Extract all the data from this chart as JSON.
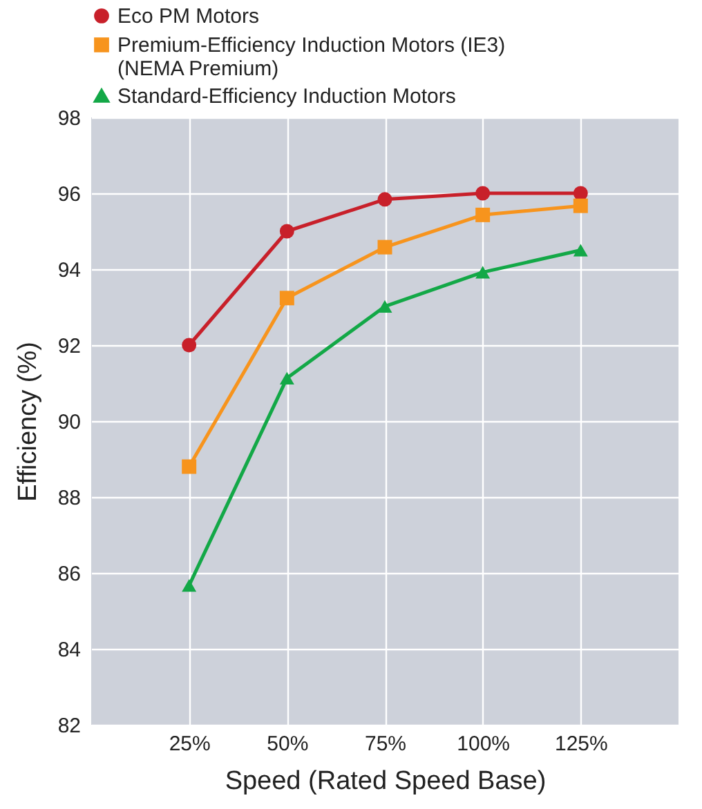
{
  "chart_data": {
    "type": "line",
    "xlabel": "Speed (Rated Speed Base)",
    "ylabel": "Efficiency (%)",
    "x": [
      25,
      50,
      75,
      100,
      125
    ],
    "xlim": [
      0,
      150
    ],
    "xticks": [
      {
        "value": 25,
        "label": "25%"
      },
      {
        "value": 50,
        "label": "50%"
      },
      {
        "value": 75,
        "label": "75%"
      },
      {
        "value": 100,
        "label": "100%"
      },
      {
        "value": 125,
        "label": "125%"
      }
    ],
    "ylim": [
      82,
      98
    ],
    "yticks": [
      82,
      84,
      86,
      88,
      90,
      92,
      94,
      96,
      98
    ],
    "grid": true,
    "legend": "top left",
    "line_style": "solid",
    "series": [
      {
        "name": "Eco PM Motors",
        "color": "#c8202a",
        "marker": "circle",
        "values": [
          92.0,
          95.0,
          95.84,
          96.0,
          96.0
        ]
      },
      {
        "name": "Premium-Efficiency Induction Motors (IE3)\n(NEMA Premium)",
        "color": "#f7941d",
        "marker": "square",
        "values": [
          88.8,
          93.24,
          94.58,
          95.43,
          95.67
        ]
      },
      {
        "name": "Standard-Efficiency Induction Motors",
        "color": "#13a847",
        "marker": "triangle",
        "values": [
          85.67,
          91.13,
          93.02,
          93.92,
          94.5
        ]
      }
    ]
  }
}
